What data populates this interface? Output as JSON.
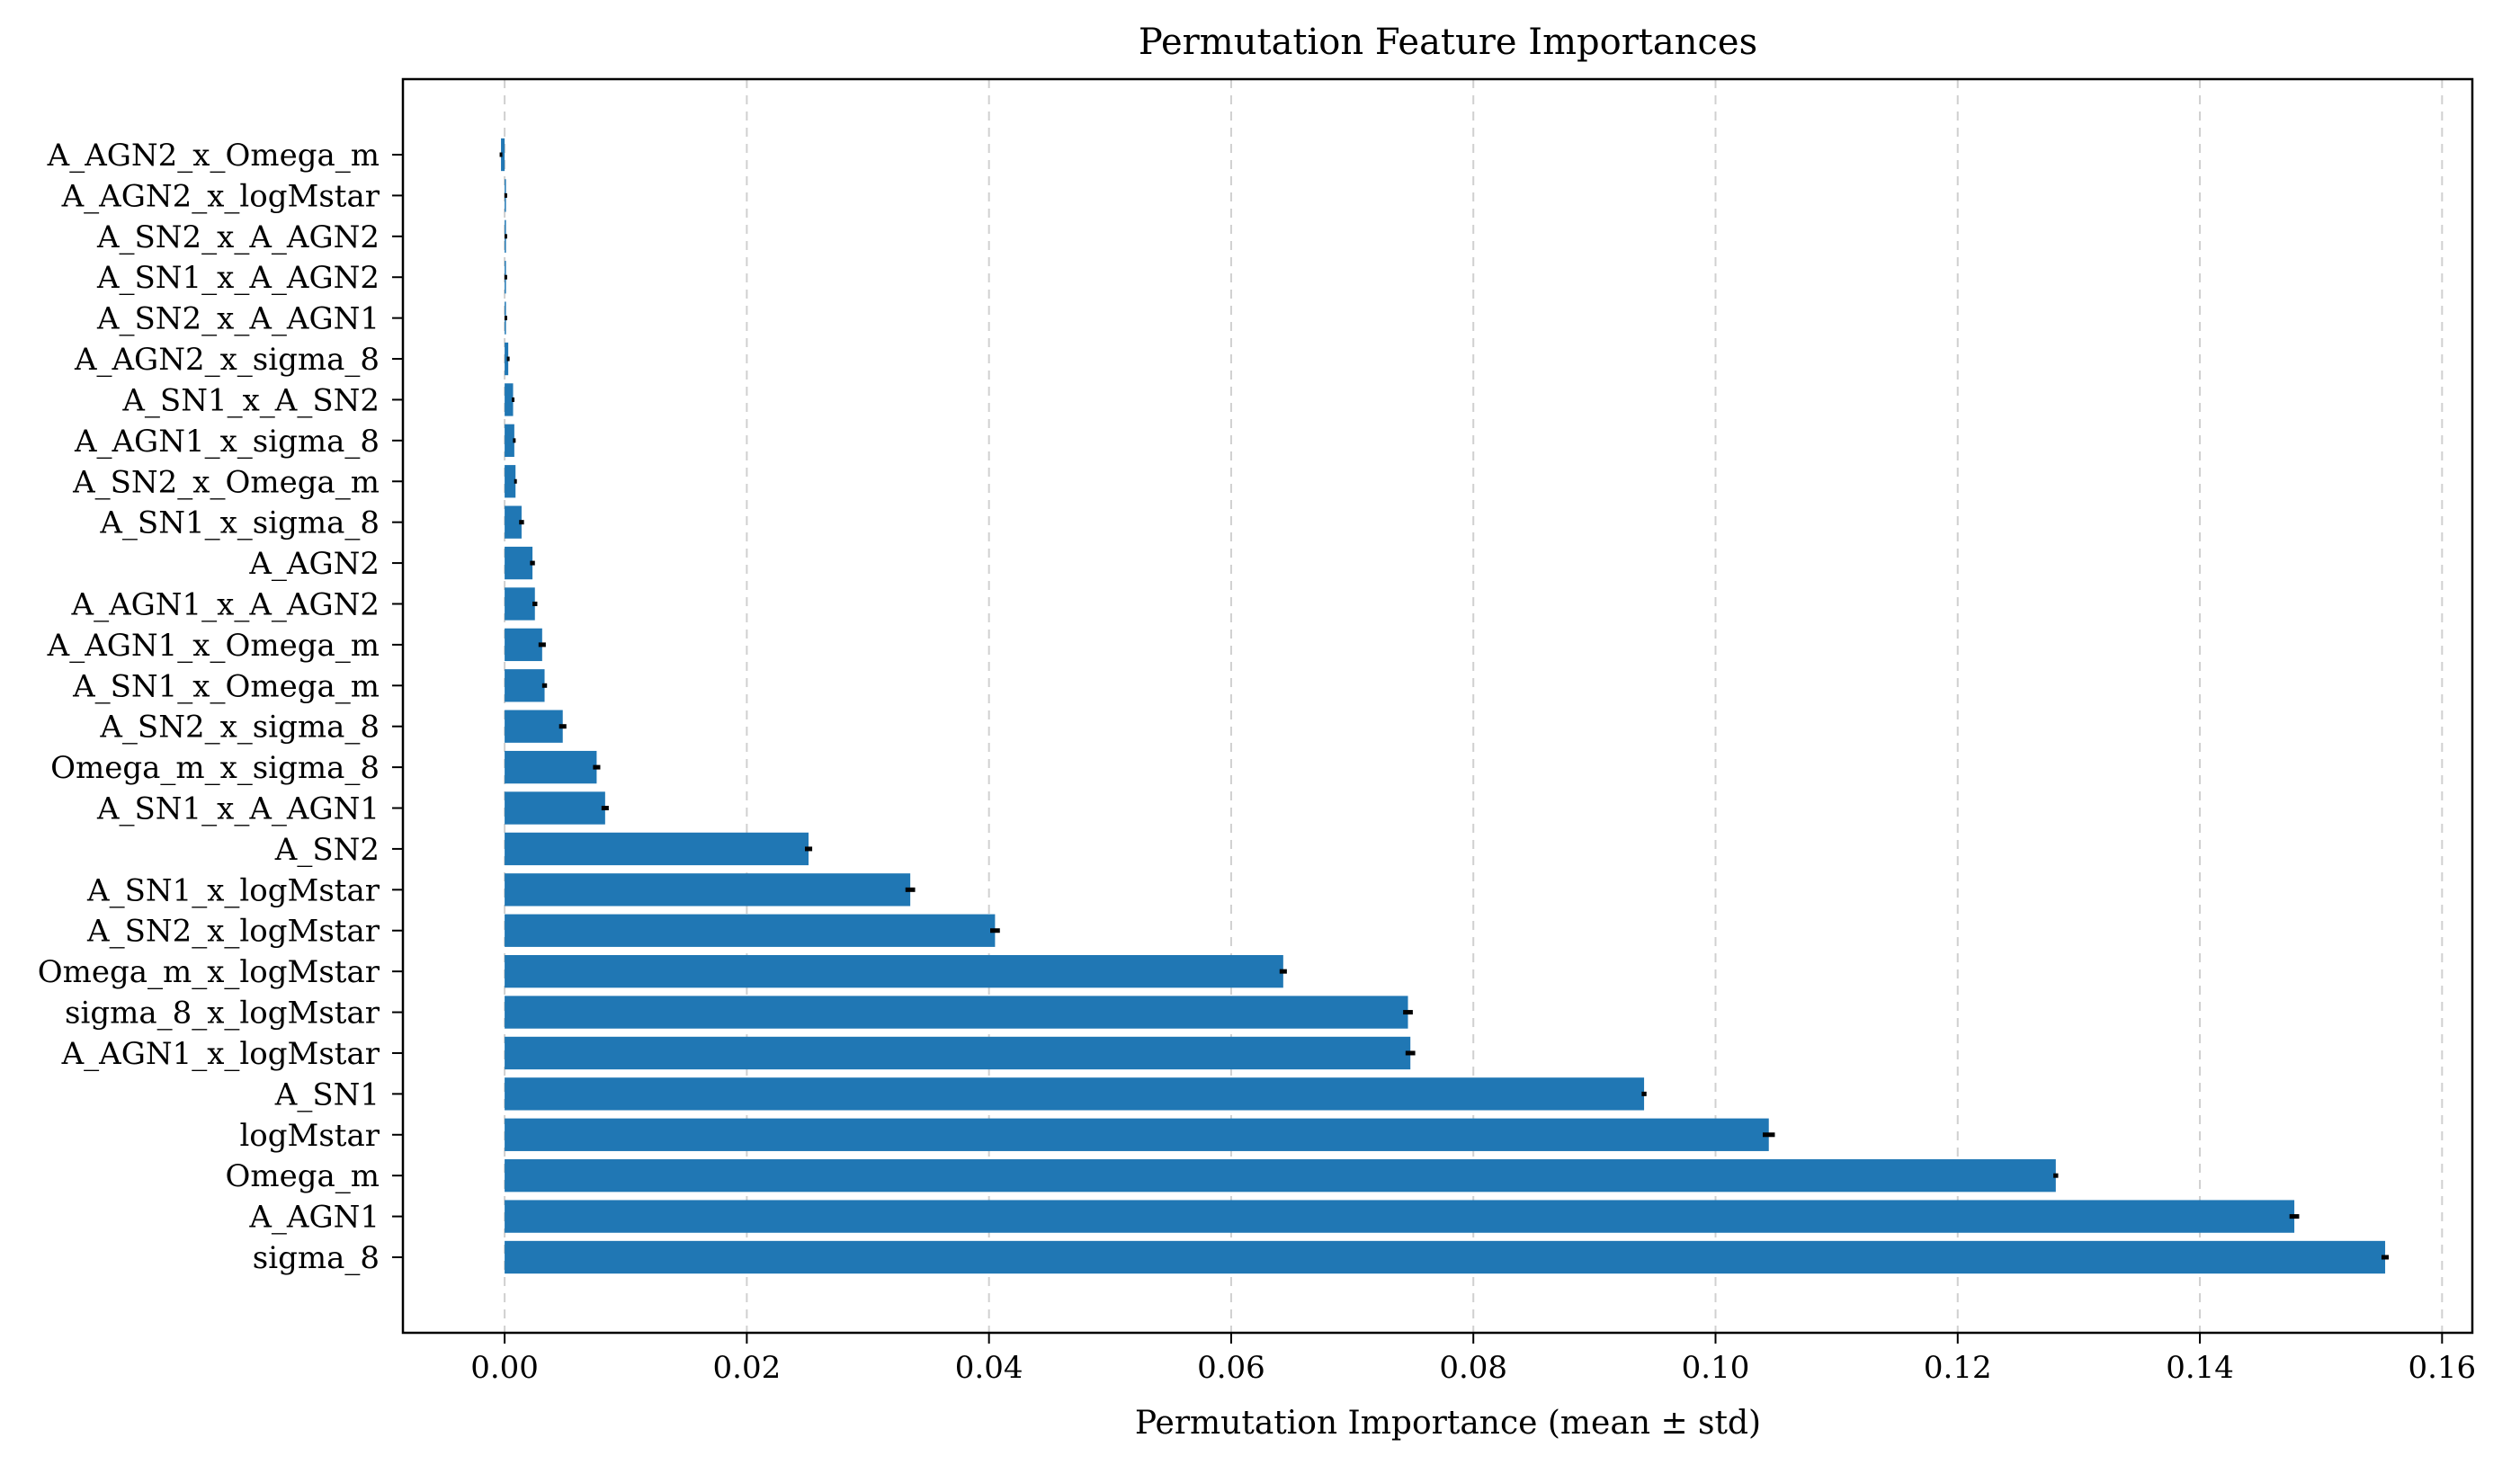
{
  "colors": {
    "bar": "#2077b4",
    "error": "#000000",
    "grid": "#d0d0d0"
  },
  "chart_data": {
    "type": "bar",
    "orientation": "horizontal",
    "title": "Permutation Feature Importances",
    "xlabel": "Permutation Importance (mean ± std)",
    "ylabel": "",
    "xlim": [
      -0.0084,
      0.1625
    ],
    "xticks": [
      0.0,
      0.02,
      0.04,
      0.06,
      0.08,
      0.1,
      0.12,
      0.14,
      0.16
    ],
    "xtick_labels": [
      "0.00",
      "0.02",
      "0.04",
      "0.06",
      "0.08",
      "0.10",
      "0.12",
      "0.14",
      "0.16"
    ],
    "grid": "x-dashed",
    "categories": [
      "A_AGN2_x_Omega_m",
      "A_AGN2_x_logMstar",
      "A_SN2_x_A_AGN2",
      "A_SN1_x_A_AGN2",
      "A_SN2_x_A_AGN1",
      "A_AGN2_x_sigma_8",
      "A_SN1_x_A_SN2",
      "A_AGN1_x_sigma_8",
      "A_SN2_x_Omega_m",
      "A_SN1_x_sigma_8",
      "A_AGN2",
      "A_AGN1_x_A_AGN2",
      "A_AGN1_x_Omega_m",
      "A_SN1_x_Omega_m",
      "A_SN2_x_sigma_8",
      "Omega_m_x_sigma_8",
      "A_SN1_x_A_AGN1",
      "A_SN2",
      "A_SN1_x_logMstar",
      "A_SN2_x_logMstar",
      "Omega_m_x_logMstar",
      "sigma_8_x_logMstar",
      "A_AGN1_x_logMstar",
      "A_SN1",
      "logMstar",
      "Omega_m",
      "A_AGN1",
      "sigma_8"
    ],
    "values": [
      -0.0003,
      0.0001,
      0.0001,
      0.0001,
      0.0001,
      0.0003,
      0.0007,
      0.0008,
      0.0009,
      0.0014,
      0.0023,
      0.0025,
      0.0031,
      0.0033,
      0.0048,
      0.0076,
      0.0083,
      0.0251,
      0.0335,
      0.0405,
      0.0643,
      0.0746,
      0.0748,
      0.0941,
      0.1044,
      0.1281,
      0.1478,
      0.1553
    ],
    "errors": [
      0.0001,
      0.0,
      0.0,
      0.0,
      0.0,
      0.0001,
      0.0001,
      0.0001,
      0.0001,
      0.0002,
      0.0002,
      0.0002,
      0.0003,
      0.0002,
      0.0003,
      0.0003,
      0.0003,
      0.0003,
      0.0004,
      0.0004,
      0.0003,
      0.0004,
      0.0004,
      0.0002,
      0.0005,
      0.0002,
      0.0004,
      0.0003
    ]
  }
}
